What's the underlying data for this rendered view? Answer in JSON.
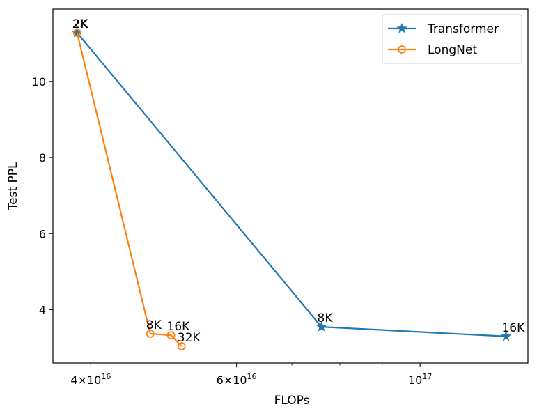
{
  "chart_data": {
    "type": "line",
    "title": "",
    "xlabel": "FLOPs",
    "ylabel": "Test PPL",
    "x_scale": "log",
    "xlim": [
      36000000000000000,
      135000000000000000
    ],
    "ylim": [
      2.6,
      11.9
    ],
    "x_ticks": [
      {
        "value": 40000000000000000,
        "base": "4",
        "mult": "×",
        "ten": "10",
        "exp": "16"
      },
      {
        "value": 60000000000000000,
        "base": "6",
        "mult": "×",
        "ten": "10",
        "exp": "16"
      },
      {
        "value": 100000000000000000,
        "base": "",
        "mult": "",
        "ten": "10",
        "exp": "17"
      }
    ],
    "x_minor_ticks": [
      50000000000000000,
      70000000000000000,
      80000000000000000,
      90000000000000000
    ],
    "y_ticks": [
      {
        "value": 4,
        "label": "4"
      },
      {
        "value": 6,
        "label": "6"
      },
      {
        "value": 8,
        "label": "8"
      },
      {
        "value": 10,
        "label": "10"
      }
    ],
    "grid": false,
    "legend_position": "top-right",
    "series": [
      {
        "name": "Transformer",
        "color": "#1f77b4",
        "marker": "star",
        "points": [
          {
            "x": 38500000000000000,
            "y": 11.28,
            "label": "2K"
          },
          {
            "x": 76000000000000000,
            "y": 3.55,
            "label": "8K"
          },
          {
            "x": 127000000000000000,
            "y": 3.3,
            "label": "16K"
          }
        ]
      },
      {
        "name": "LongNet",
        "color": "#ff7f0e",
        "marker": "circle",
        "points": [
          {
            "x": 38500000000000000,
            "y": 11.28,
            "label": ""
          },
          {
            "x": 47200000000000000,
            "y": 3.37,
            "label": "8K"
          },
          {
            "x": 50000000000000000,
            "y": 3.33,
            "label": "16K"
          },
          {
            "x": 51500000000000000,
            "y": 3.04,
            "label": "32K"
          }
        ]
      }
    ],
    "plain_annotations": [
      {
        "x": 38500000000000000,
        "y": 11.28,
        "label": "2K"
      }
    ]
  }
}
